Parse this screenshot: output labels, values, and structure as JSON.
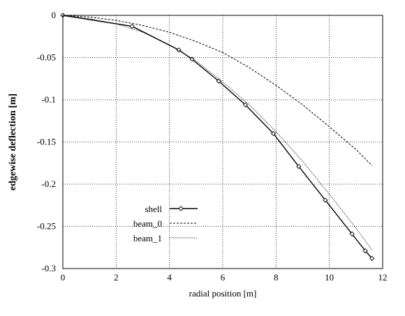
{
  "chart_data": {
    "type": "line",
    "xlabel": "radial position [m]",
    "ylabel": "edgewise deflection [m]",
    "xlim": [
      0,
      12
    ],
    "ylim": [
      -0.3,
      0
    ],
    "xticks": [
      0,
      2,
      4,
      6,
      8,
      10,
      12
    ],
    "yticks": [
      0,
      -0.05,
      -0.1,
      -0.15,
      -0.2,
      -0.25,
      -0.3
    ],
    "xtick_labels": [
      "0",
      "2",
      "4",
      "6",
      "8",
      "10",
      "12"
    ],
    "ytick_labels": [
      "0",
      "-0.05",
      "-0.1",
      "-0.15",
      "-0.2",
      "-0.25",
      "-0.3"
    ],
    "grid": true,
    "grid_style": "dotted",
    "legend_position": "bottom-left",
    "series": [
      {
        "name": "shell",
        "style": "solid",
        "marker": "diamond",
        "color": "#000000",
        "x": [
          0,
          2.6,
          4.35,
          4.85,
          5.85,
          6.85,
          7.9,
          8.85,
          9.85,
          10.85,
          11.35,
          11.6
        ],
        "y": [
          0,
          -0.013,
          -0.041,
          -0.052,
          -0.078,
          -0.106,
          -0.14,
          -0.179,
          -0.219,
          -0.259,
          -0.279,
          -0.288
        ]
      },
      {
        "name": "beam_0",
        "style": "dashed",
        "marker": "none",
        "color": "#000000",
        "x": [
          0,
          1,
          2,
          3,
          4,
          5,
          6,
          7,
          8,
          9,
          10,
          11,
          11.6
        ],
        "y": [
          0,
          -0.002,
          -0.006,
          -0.012,
          -0.02,
          -0.031,
          -0.044,
          -0.062,
          -0.083,
          -0.106,
          -0.132,
          -0.159,
          -0.178
        ]
      },
      {
        "name": "beam_1",
        "style": "dotted",
        "marker": "none",
        "color": "#000000",
        "x": [
          0,
          1,
          2,
          3,
          4,
          5,
          6,
          7,
          8,
          9,
          10,
          11,
          11.6
        ],
        "y": [
          0,
          -0.004,
          -0.01,
          -0.02,
          -0.035,
          -0.054,
          -0.079,
          -0.106,
          -0.138,
          -0.173,
          -0.212,
          -0.252,
          -0.278
        ]
      }
    ]
  }
}
